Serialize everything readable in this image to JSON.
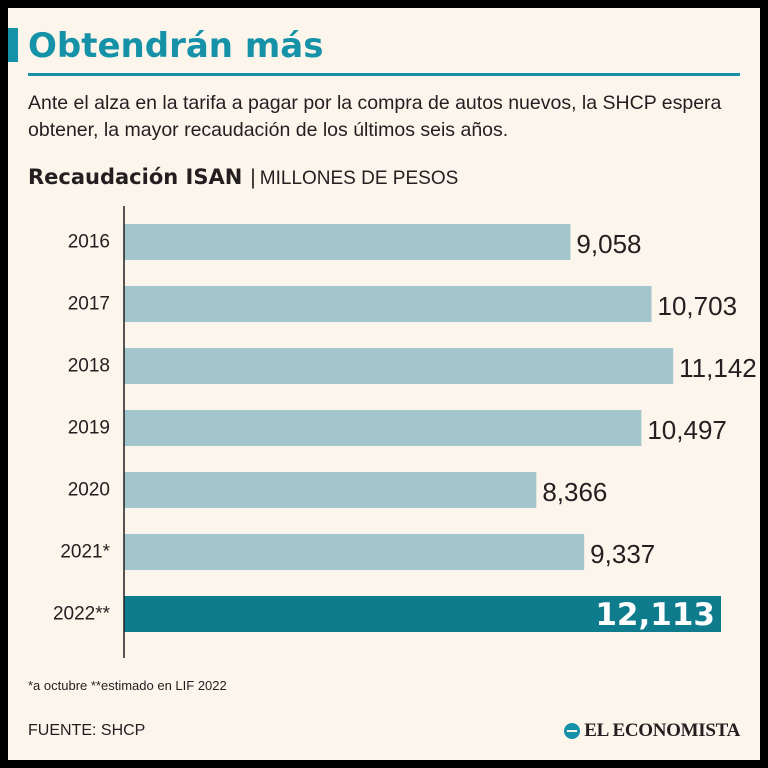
{
  "header": {
    "title": "Obtendrán más",
    "subtitle": "Ante el alza en la tarifa a pagar por la compra de autos nuevos, la SHCP espera obtener, la mayor recaudación de los últimos seis años."
  },
  "chart_heading": {
    "bold": "Recaudación ISAN",
    "separator": "|",
    "unit": "MILLONES DE PESOS"
  },
  "colors": {
    "accent": "#1692a8",
    "bar": "#a3c5cc",
    "highlight": "#0f7c8e",
    "text": "#231f20",
    "background": "#fbf5ec"
  },
  "chart_data": {
    "type": "bar",
    "orientation": "horizontal",
    "title": "Recaudación ISAN",
    "ylabel": "MILLONES DE PESOS",
    "categories": [
      "2016",
      "2017",
      "2018",
      "2019",
      "2020",
      "2021*",
      "2022**"
    ],
    "values": [
      9058,
      10703,
      11142,
      10497,
      8366,
      9337,
      12113
    ],
    "value_labels": [
      "9,058",
      "10,703",
      "11,142",
      "10,497",
      "8,366",
      "9,337",
      "12,113"
    ],
    "highlight_index": 6,
    "xlim": [
      0,
      12113
    ]
  },
  "footnote": "*a octubre **estimado en LIF 2022",
  "source": "FUENTE: SHCP",
  "brand": "EL ECONOMISTA"
}
